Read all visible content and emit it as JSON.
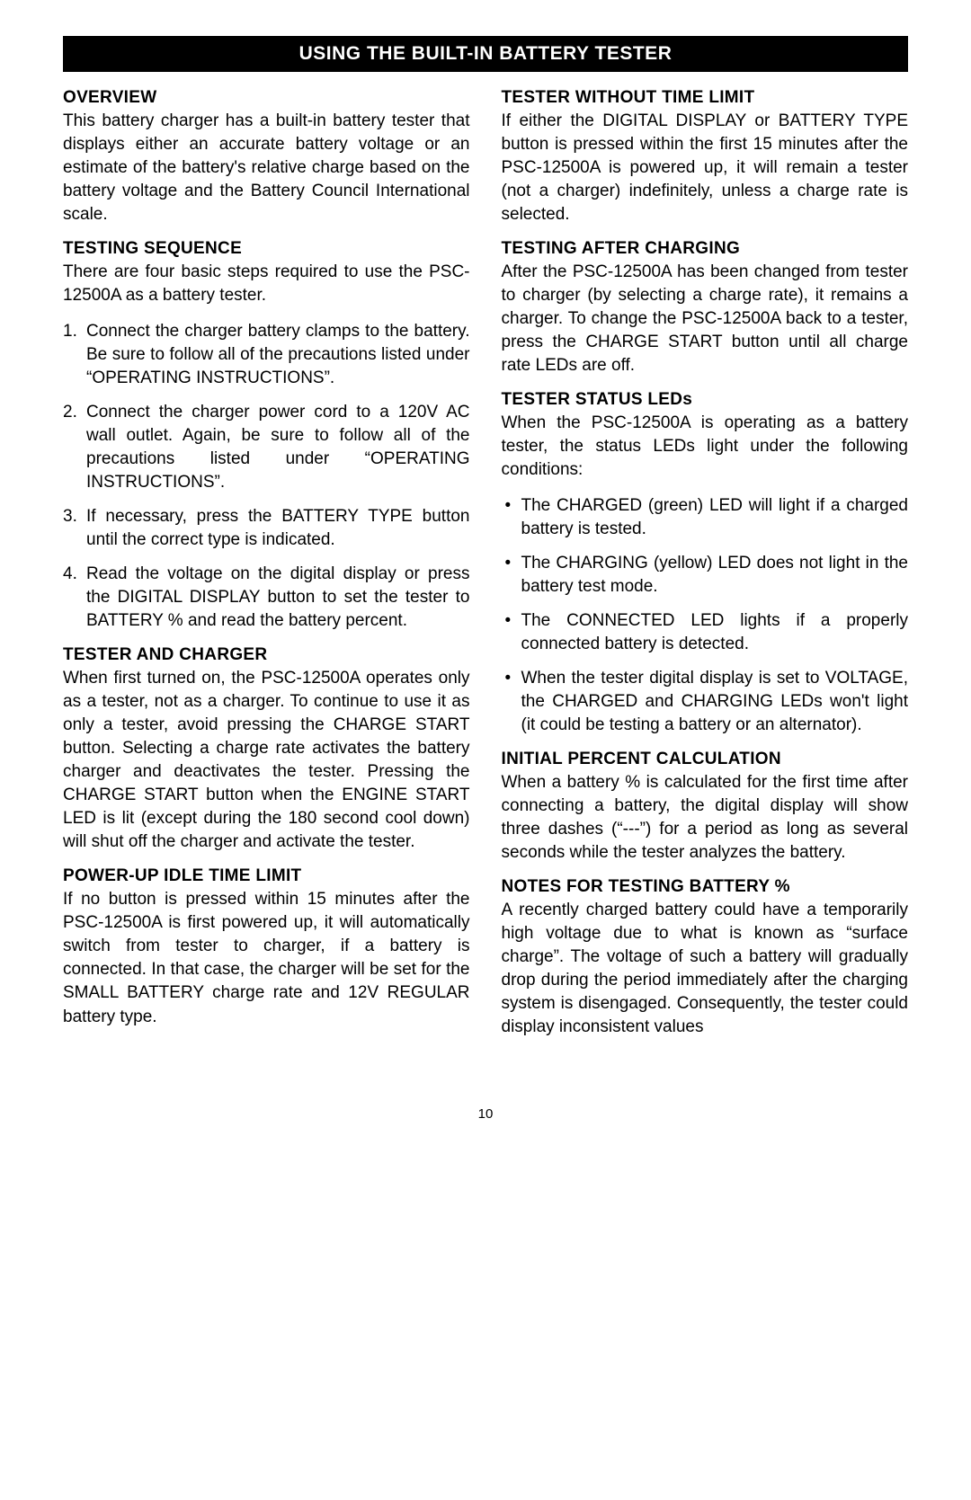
{
  "banner": "USING THE BUILT-IN BATTERY TESTER",
  "page_number": "10",
  "left": {
    "overview": {
      "heading": "OVERVIEW",
      "text": "This battery charger has a built-in battery tester that displays either an accurate battery voltage or an estimate of the battery's relative charge based on the battery voltage and the Battery Council International scale."
    },
    "testing_sequence": {
      "heading": "TESTING SEQUENCE",
      "intro": "There are four basic steps required to use the PSC-12500A as a battery tester.",
      "steps": [
        "Connect the charger battery clamps to the battery. Be sure to follow all of the precautions listed under “OPERATING INSTRUCTIONS”.",
        "Connect the charger power cord to a 120V AC wall outlet. Again, be sure to follow all of the precautions listed under “OPERATING INSTRUCTIONS”.",
        "If necessary, press the BATTERY TYPE button until the correct type is indicated.",
        "Read the voltage on the digital display or press the DIGITAL DISPLAY button to set the tester to BATTERY % and read the battery percent."
      ]
    },
    "tester_and_charger": {
      "heading": "TESTER AND CHARGER",
      "text": "When first turned on, the PSC-12500A operates only as a tester, not as a charger. To continue to use it as only a tester, avoid pressing the CHARGE START button. Selecting a charge rate activates the battery charger and deactivates the tester. Pressing the CHARGE START button when the ENGINE START LED is lit (except during the 180 second cool down) will shut off the charger and activate the tester."
    },
    "power_up_idle": {
      "heading": "POWER-UP IDLE TIME LIMIT",
      "text": "If no button is pressed within 15 minutes after the PSC-12500A is first powered up, it will automatically switch from tester to charger, if a battery is connected. In that case, the charger will be set for the SMALL BATTERY charge rate and 12V REGULAR battery type."
    }
  },
  "right": {
    "tester_without_time": {
      "heading": "TESTER WITHOUT TIME LIMIT",
      "text": "If either the DIGITAL DISPLAY or BATTERY TYPE button is pressed within the first 15 minutes after the PSC-12500A is powered up, it will remain a tester (not a charger) indefinitely, unless a charge rate is selected."
    },
    "testing_after_charging": {
      "heading": "TESTING AFTER CHARGING",
      "text": "After the PSC-12500A has been changed from tester to charger (by selecting a charge rate), it remains a charger. To change the PSC-12500A back to a tester, press the CHARGE START button until all charge rate LEDs are off."
    },
    "tester_status_leds": {
      "heading": "TESTER STATUS LEDs",
      "intro": "When the PSC-12500A is operating as a battery tester, the status LEDs light under the following conditions:",
      "bullets": [
        "The CHARGED (green) LED will light if a charged battery is tested.",
        "The CHARGING (yellow) LED does not light in the battery test mode.",
        "The CONNECTED LED lights if a properly connected battery is detected.",
        "When the tester digital display is set to VOLTAGE, the CHARGED and CHARGING LEDs won't light (it could be testing a battery or an alternator)."
      ]
    },
    "initial_percent": {
      "heading": "INITIAL PERCENT CALCULATION",
      "text": "When a battery % is calculated for the first time after connecting a battery, the digital display will show three dashes (“---”) for a period as long as several seconds while the tester analyzes the battery."
    },
    "notes_testing": {
      "heading": "NOTES FOR TESTING BATTERY %",
      "text": "A recently charged battery could have a temporarily high voltage due to what is known as “surface charge”. The voltage of such a battery will gradually drop during the period immediately after the charging system is disengaged. Consequently, the tester could display inconsistent values"
    }
  }
}
